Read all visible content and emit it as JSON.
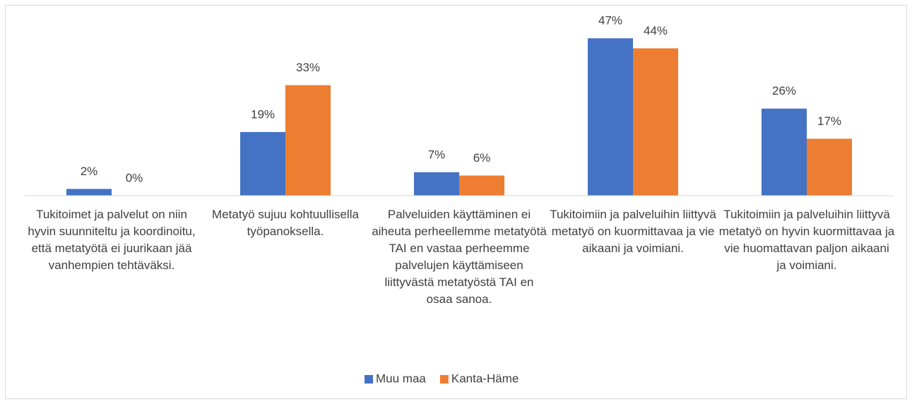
{
  "chart_data": {
    "type": "bar",
    "categories": [
      "Tukitoimet ja palvelut on niin hyvin suunniteltu ja koordinoitu, että metatyötä ei juurikaan jää vanhempien tehtäväksi.",
      "Metatyö sujuu kohtuullisella työpanoksella.",
      "Palveluiden käyttäminen ei aiheuta perheellemme metatyötä TAI en vastaa perheemme palvelujen käyttämiseen liittyvästä metatyöstä TAI en osaa sanoa.",
      "Tukitoimiin ja palveluihin liittyvä metatyö on kuormittavaa ja vie aikaani ja voimiani.",
      "Tukitoimiin ja palveluihin liittyvä metatyö on hyvin kuormittavaa ja vie huomattavan paljon aikaani ja voimiani."
    ],
    "series": [
      {
        "name": "Muu maa",
        "color": "#4472c4",
        "values": [
          2,
          19,
          7,
          47,
          26
        ],
        "value_labels": [
          "2%",
          "19%",
          "7%",
          "47%",
          "26%"
        ]
      },
      {
        "name": "Kanta-Häme",
        "color": "#ed7d31",
        "values": [
          0,
          33,
          6,
          44,
          17
        ],
        "value_labels": [
          "0%",
          "33%",
          "6%",
          "44%",
          "17%"
        ]
      }
    ],
    "ylim": [
      0,
      50
    ],
    "legend": "bottom"
  }
}
